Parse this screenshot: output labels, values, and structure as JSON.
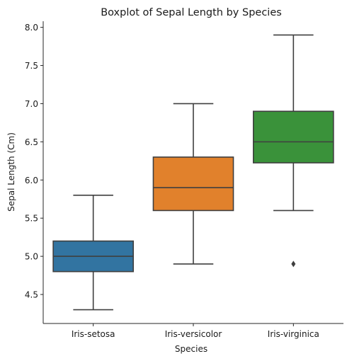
{
  "chart_data": {
    "type": "box",
    "title": "Boxplot of Sepal Length by Species",
    "xlabel": "Species",
    "ylabel": "Sepal Length (Cm)",
    "ylim": [
      4.12,
      8.08
    ],
    "yticks": [
      "4.5",
      "5.0",
      "5.5",
      "6.0",
      "6.5",
      "7.0",
      "7.5",
      "8.0"
    ],
    "grid": false,
    "categories": [
      "Iris-setosa",
      "Iris-versicolor",
      "Iris-virginica"
    ],
    "boxes": [
      {
        "category": "Iris-setosa",
        "whisker_low": 4.3,
        "q1": 4.8,
        "median": 5.0,
        "q3": 5.2,
        "whisker_high": 5.8,
        "outliers": [],
        "color": "#3274a1"
      },
      {
        "category": "Iris-versicolor",
        "whisker_low": 4.9,
        "q1": 5.6,
        "median": 5.9,
        "q3": 6.3,
        "whisker_high": 7.0,
        "outliers": [],
        "color": "#e1812c"
      },
      {
        "category": "Iris-virginica",
        "whisker_low": 5.6,
        "q1": 6.225,
        "median": 6.5,
        "q3": 6.9,
        "whisker_high": 7.9,
        "outliers": [
          4.9
        ],
        "color": "#3a923a"
      }
    ],
    "line_color": "#3f3f3f"
  }
}
